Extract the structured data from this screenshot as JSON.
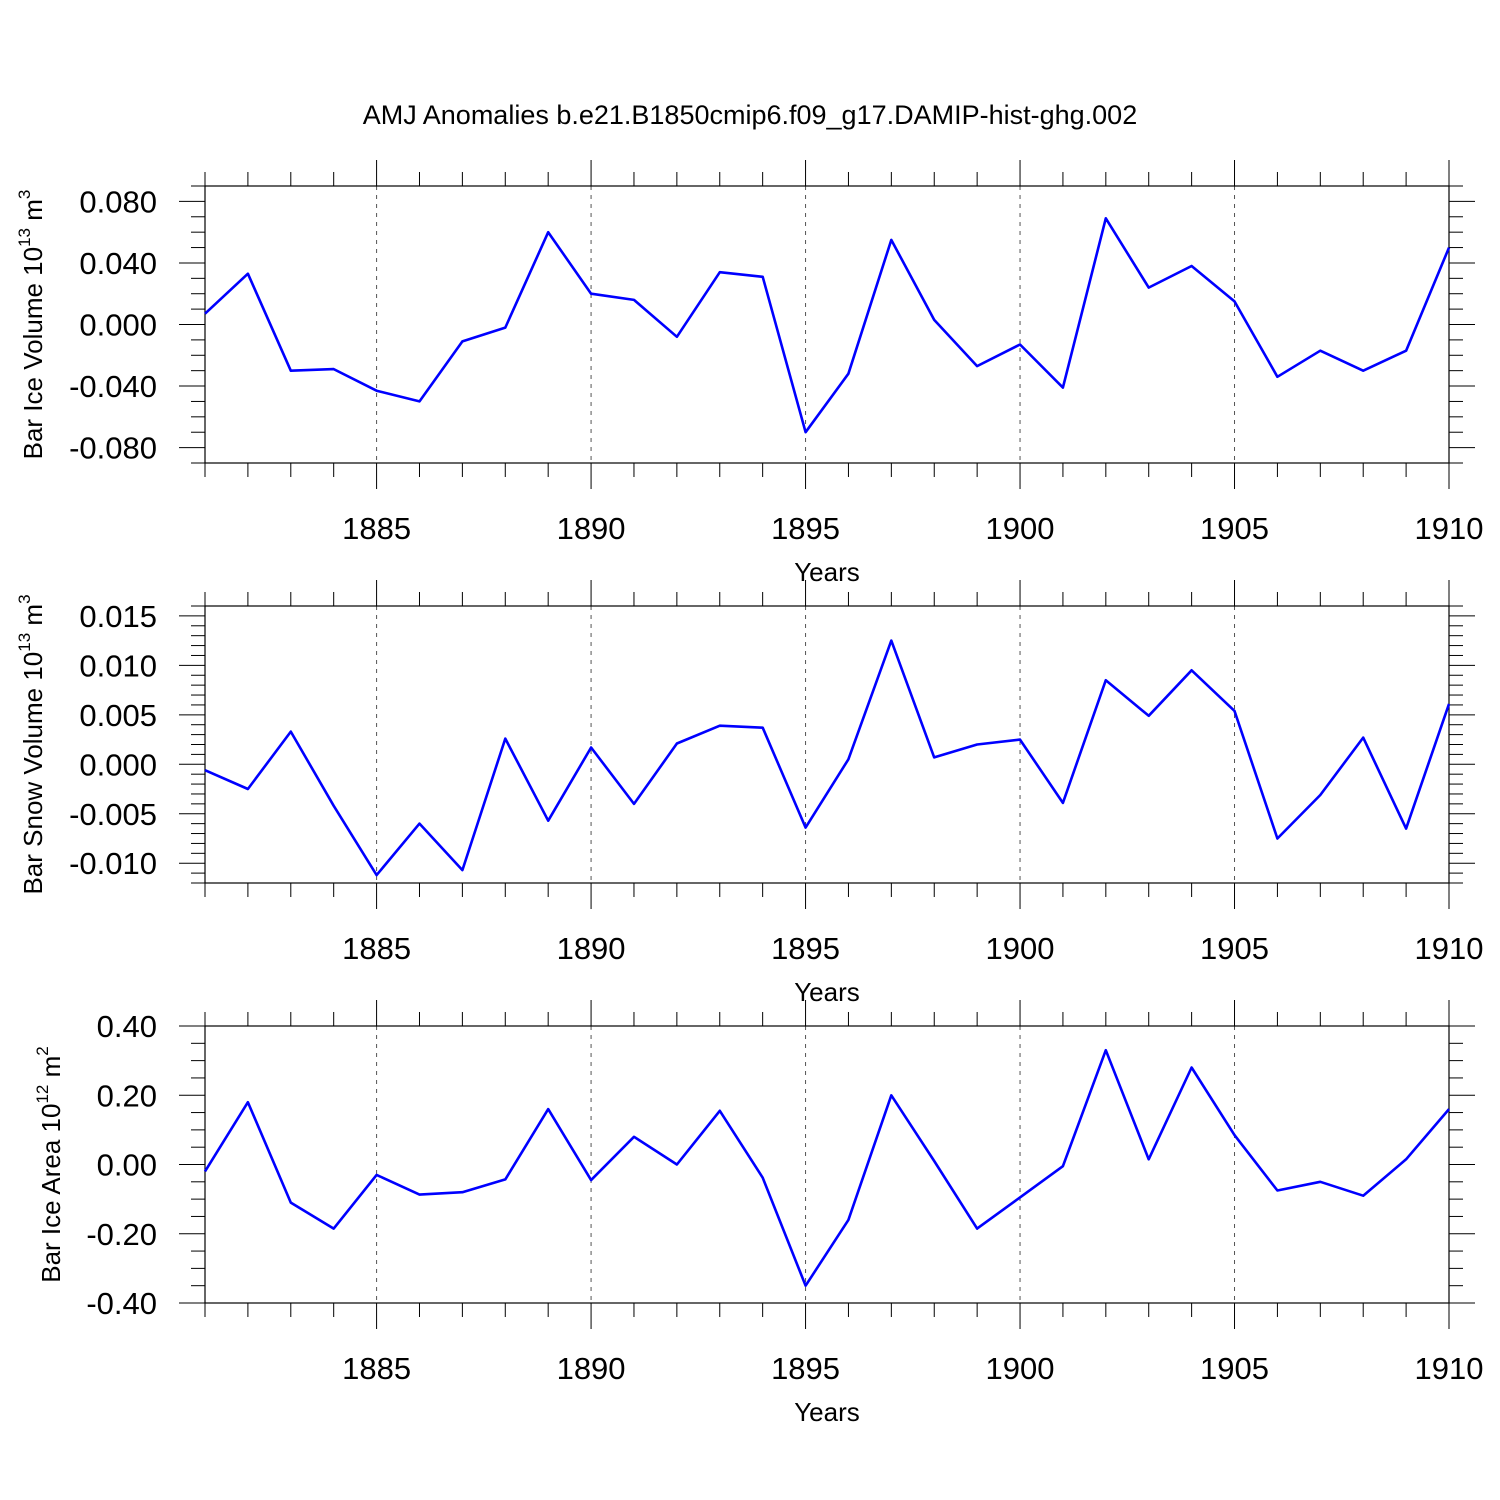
{
  "title": "AMJ Anomalies b.e21.B1850cmip6.f09_g17.DAMIP-hist-ghg.002",
  "line_color": "#0000ff",
  "chart_data": [
    {
      "type": "line",
      "title": "",
      "xlabel": "Years",
      "ylabel_main": "Bar Ice Volume 10",
      "ylabel_exp": "13",
      "ylabel_unit": " m",
      "ylabel_unit_exp": "3",
      "xlim": [
        1881,
        1910
      ],
      "ylim": [
        -0.09,
        0.09
      ],
      "xticks": [
        1885,
        1890,
        1895,
        1900,
        1905,
        1910
      ],
      "xtick_labels": [
        "1885",
        "1890",
        "1895",
        "1900",
        "1905",
        "1910"
      ],
      "yticks": [
        -0.08,
        -0.04,
        0.0,
        0.04,
        0.08
      ],
      "ytick_labels": [
        "-0.080",
        "-0.040",
        "0.000",
        "0.040",
        "0.080"
      ],
      "y_minor_step": 0.01,
      "grid": "x-major-dashed",
      "x": [
        1881,
        1882,
        1883,
        1884,
        1885,
        1886,
        1887,
        1888,
        1889,
        1890,
        1891,
        1892,
        1893,
        1894,
        1895,
        1896,
        1897,
        1898,
        1899,
        1900,
        1901,
        1902,
        1903,
        1904,
        1905,
        1906,
        1907,
        1908,
        1909,
        1910
      ],
      "series": [
        {
          "values": [
            0.007,
            0.033,
            -0.03,
            -0.029,
            -0.043,
            -0.05,
            -0.011,
            -0.002,
            0.06,
            0.02,
            0.016,
            -0.008,
            0.034,
            0.031,
            -0.07,
            -0.032,
            0.055,
            0.003,
            -0.027,
            -0.013,
            -0.041,
            0.069,
            0.024,
            0.038,
            0.015,
            -0.034,
            -0.017,
            -0.03,
            -0.017,
            0.05
          ]
        }
      ]
    },
    {
      "type": "line",
      "title": "",
      "xlabel": "Years",
      "ylabel_main": "Bar Snow Volume 10",
      "ylabel_exp": "13",
      "ylabel_unit": " m",
      "ylabel_unit_exp": "3",
      "xlim": [
        1881,
        1910
      ],
      "ylim": [
        -0.012,
        0.016
      ],
      "xticks": [
        1885,
        1890,
        1895,
        1900,
        1905,
        1910
      ],
      "xtick_labels": [
        "1885",
        "1890",
        "1895",
        "1900",
        "1905",
        "1910"
      ],
      "yticks": [
        -0.01,
        -0.005,
        0.0,
        0.005,
        0.01,
        0.015
      ],
      "ytick_labels": [
        "-0.010",
        "-0.005",
        "0.000",
        "0.005",
        "0.010",
        "0.015"
      ],
      "y_minor_step": 0.001,
      "grid": "x-major-dashed",
      "x": [
        1881,
        1882,
        1883,
        1884,
        1885,
        1886,
        1887,
        1888,
        1889,
        1890,
        1891,
        1892,
        1893,
        1894,
        1895,
        1896,
        1897,
        1898,
        1899,
        1900,
        1901,
        1902,
        1903,
        1904,
        1905,
        1906,
        1907,
        1908,
        1909,
        1910
      ],
      "series": [
        {
          "values": [
            -0.0006,
            -0.0025,
            0.0033,
            -0.0042,
            -0.0112,
            -0.006,
            -0.0107,
            0.0026,
            -0.0057,
            0.0017,
            -0.004,
            0.0021,
            0.0039,
            0.0037,
            -0.0064,
            0.0005,
            0.0125,
            0.0007,
            0.002,
            0.0025,
            -0.0039,
            0.0085,
            0.0049,
            0.0095,
            0.0054,
            -0.0075,
            -0.0031,
            0.0027,
            -0.0065,
            0.0061
          ]
        }
      ]
    },
    {
      "type": "line",
      "title": "",
      "xlabel": "Years",
      "ylabel_main": "Bar Ice Area 10",
      "ylabel_exp": "12",
      "ylabel_unit": " m",
      "ylabel_unit_exp": "2",
      "xlim": [
        1881,
        1910
      ],
      "ylim": [
        -0.4,
        0.4
      ],
      "xticks": [
        1885,
        1890,
        1895,
        1900,
        1905,
        1910
      ],
      "xtick_labels": [
        "1885",
        "1890",
        "1895",
        "1900",
        "1905",
        "1910"
      ],
      "yticks": [
        -0.4,
        -0.2,
        0.0,
        0.2,
        0.4
      ],
      "ytick_labels": [
        "-0.40",
        "-0.20",
        "0.00",
        "0.20",
        "0.40"
      ],
      "y_minor_step": 0.05,
      "grid": "x-major-dashed",
      "x": [
        1881,
        1882,
        1883,
        1884,
        1885,
        1886,
        1887,
        1888,
        1889,
        1890,
        1891,
        1892,
        1893,
        1894,
        1895,
        1896,
        1897,
        1898,
        1899,
        1900,
        1901,
        1902,
        1903,
        1904,
        1905,
        1906,
        1907,
        1908,
        1909,
        1910
      ],
      "series": [
        {
          "values": [
            -0.02,
            0.18,
            -0.11,
            -0.185,
            -0.03,
            -0.087,
            -0.08,
            -0.043,
            0.16,
            -0.045,
            0.08,
            0.0,
            0.155,
            -0.038,
            -0.35,
            -0.16,
            0.2,
            0.01,
            -0.185,
            -0.095,
            -0.005,
            0.33,
            0.015,
            0.28,
            0.085,
            -0.075,
            -0.05,
            -0.09,
            0.015,
            0.16
          ]
        }
      ]
    }
  ]
}
